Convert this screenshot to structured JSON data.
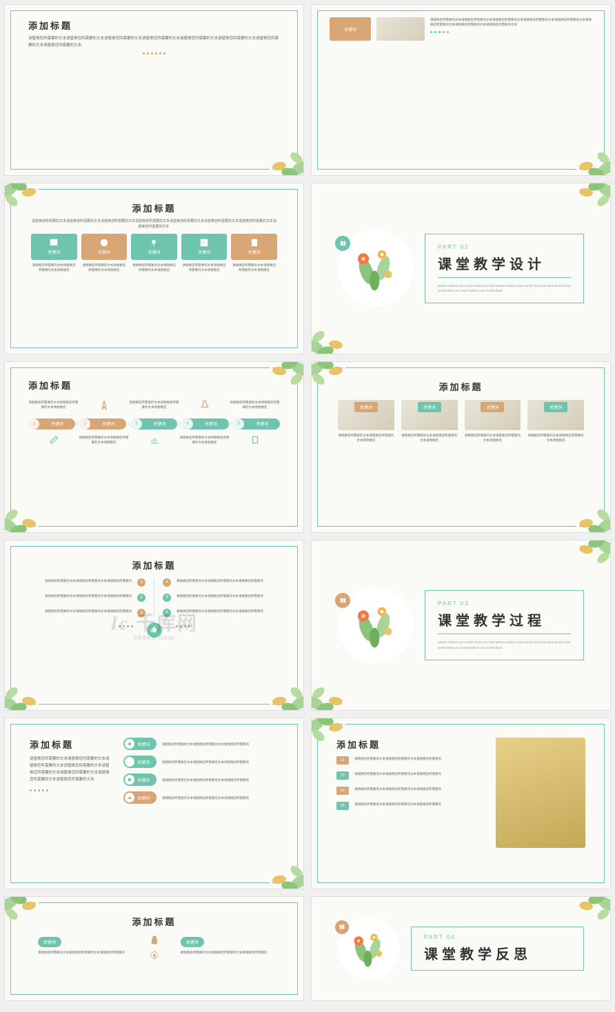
{
  "colors": {
    "teal": "#6fc4ae",
    "orange": "#d8a574",
    "bg": "#fafaf7",
    "text": "#333333",
    "muted": "#666666"
  },
  "watermark": {
    "main": "千库网",
    "sub": "588ku.com",
    "logo": "Ic"
  },
  "common": {
    "title": "添加标题",
    "keyword": "关键词",
    "placeholder_short": "请替换您所需要的文本请替换您所需要的文本请替换您所需要的",
    "placeholder_long": "请替换您所需要的文本请替换您所需要的文本请替换您所需要的文本请替换您所需要的文本请替换您所需要的文本请替换您所需要的文本请替换您所需要的文本请替换您所需要的文本.",
    "tiny": "请替换您所需要的文本请替换您所需要的文本请替换您"
  },
  "part2": {
    "label": "PART 02",
    "title": "课堂教学设计",
    "sub": "please replace your words thant you need please replace your words thant you need please your words thant you need replace your words thant."
  },
  "part3": {
    "label": "PART 03",
    "title": "课堂教学过程",
    "sub": "please replace your words thant you need please replace your words thant you need please your words thant you need replace your words thant."
  },
  "part4": {
    "label": "PART 04",
    "title": "课堂教学反思"
  },
  "slide_icons": {
    "items": [
      "关键词",
      "关键词",
      "关键词",
      "关键词",
      "关键词"
    ],
    "colors": [
      "#6fc4ae",
      "#d8a574",
      "#6fc4ae",
      "#6fc4ae",
      "#d8a574"
    ]
  },
  "process": {
    "steps": [
      1,
      2,
      3,
      4,
      5
    ],
    "colors": [
      "#d8a574",
      "#d8a574",
      "#6fc4ae",
      "#6fc4ae",
      "#6fc4ae"
    ]
  },
  "numbered6": {
    "nums": [
      1,
      2,
      3,
      4,
      5,
      6
    ],
    "colors": [
      "#d8a574",
      "#6fc4ae",
      "#d8a574",
      "#d8a574",
      "#6fc4ae",
      "#6fc4ae"
    ]
  },
  "numbered4": {
    "nums": [
      "01",
      "02",
      "03",
      "04"
    ],
    "colors": [
      "#d8a574",
      "#6fc4ae",
      "#d8a574",
      "#6fc4ae"
    ]
  }
}
